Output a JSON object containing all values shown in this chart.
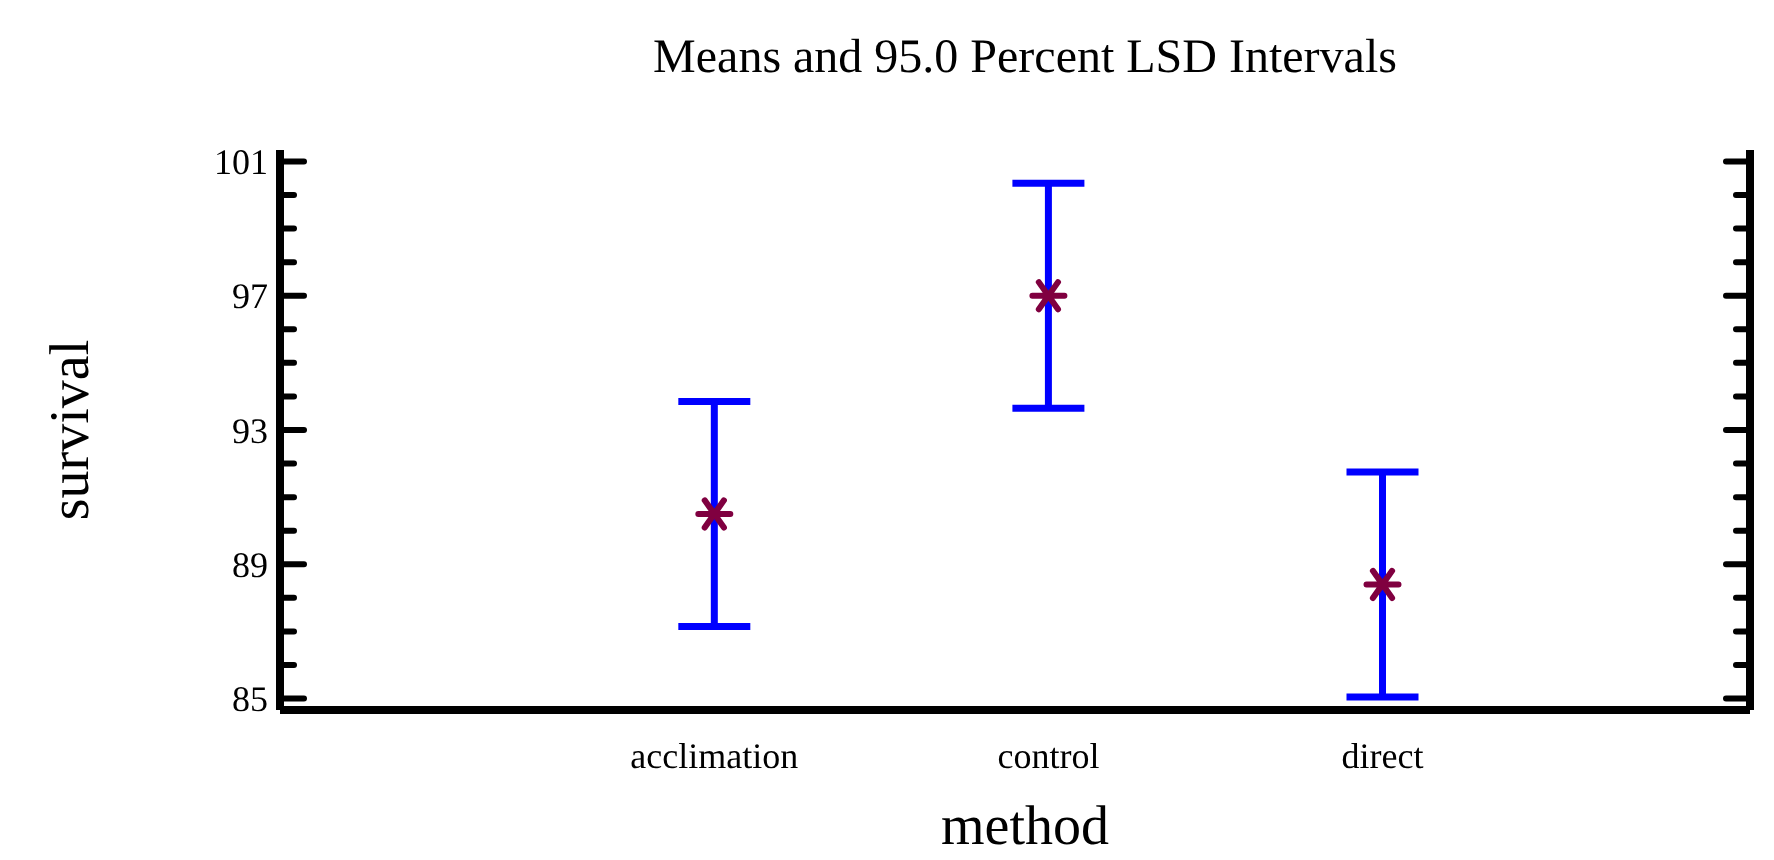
{
  "chart_data": {
    "type": "scatter",
    "title": "Means and 95.0 Percent LSD Intervals",
    "xlabel": "method",
    "ylabel": "survival",
    "categories": [
      "acclimation",
      "control",
      "direct"
    ],
    "series": [
      {
        "color": "#800040",
        "values": [
          90.5,
          97.0,
          88.4
        ],
        "errors": [
          3.35,
          3.35,
          3.35
        ]
      }
    ],
    "ylim": [
      84.66,
      101.34
    ],
    "yticks": [
      85,
      {
        "value": 86,
        "label": null
      },
      {
        "value": 87,
        "label": null
      },
      {
        "value": 88,
        "label": null
      },
      89,
      {
        "value": 90,
        "label": null
      },
      {
        "value": 91,
        "label": null
      },
      {
        "value": 92,
        "label": null
      },
      93,
      {
        "value": 94,
        "label": null
      },
      {
        "value": 95,
        "label": null
      },
      {
        "value": 96,
        "label": null
      },
      97,
      {
        "value": 98,
        "label": null
      },
      {
        "value": 99,
        "label": null
      },
      {
        "value": 100,
        "label": null
      },
      101
    ],
    "grid": false,
    "legend": false,
    "marker": "cross"
  }
}
